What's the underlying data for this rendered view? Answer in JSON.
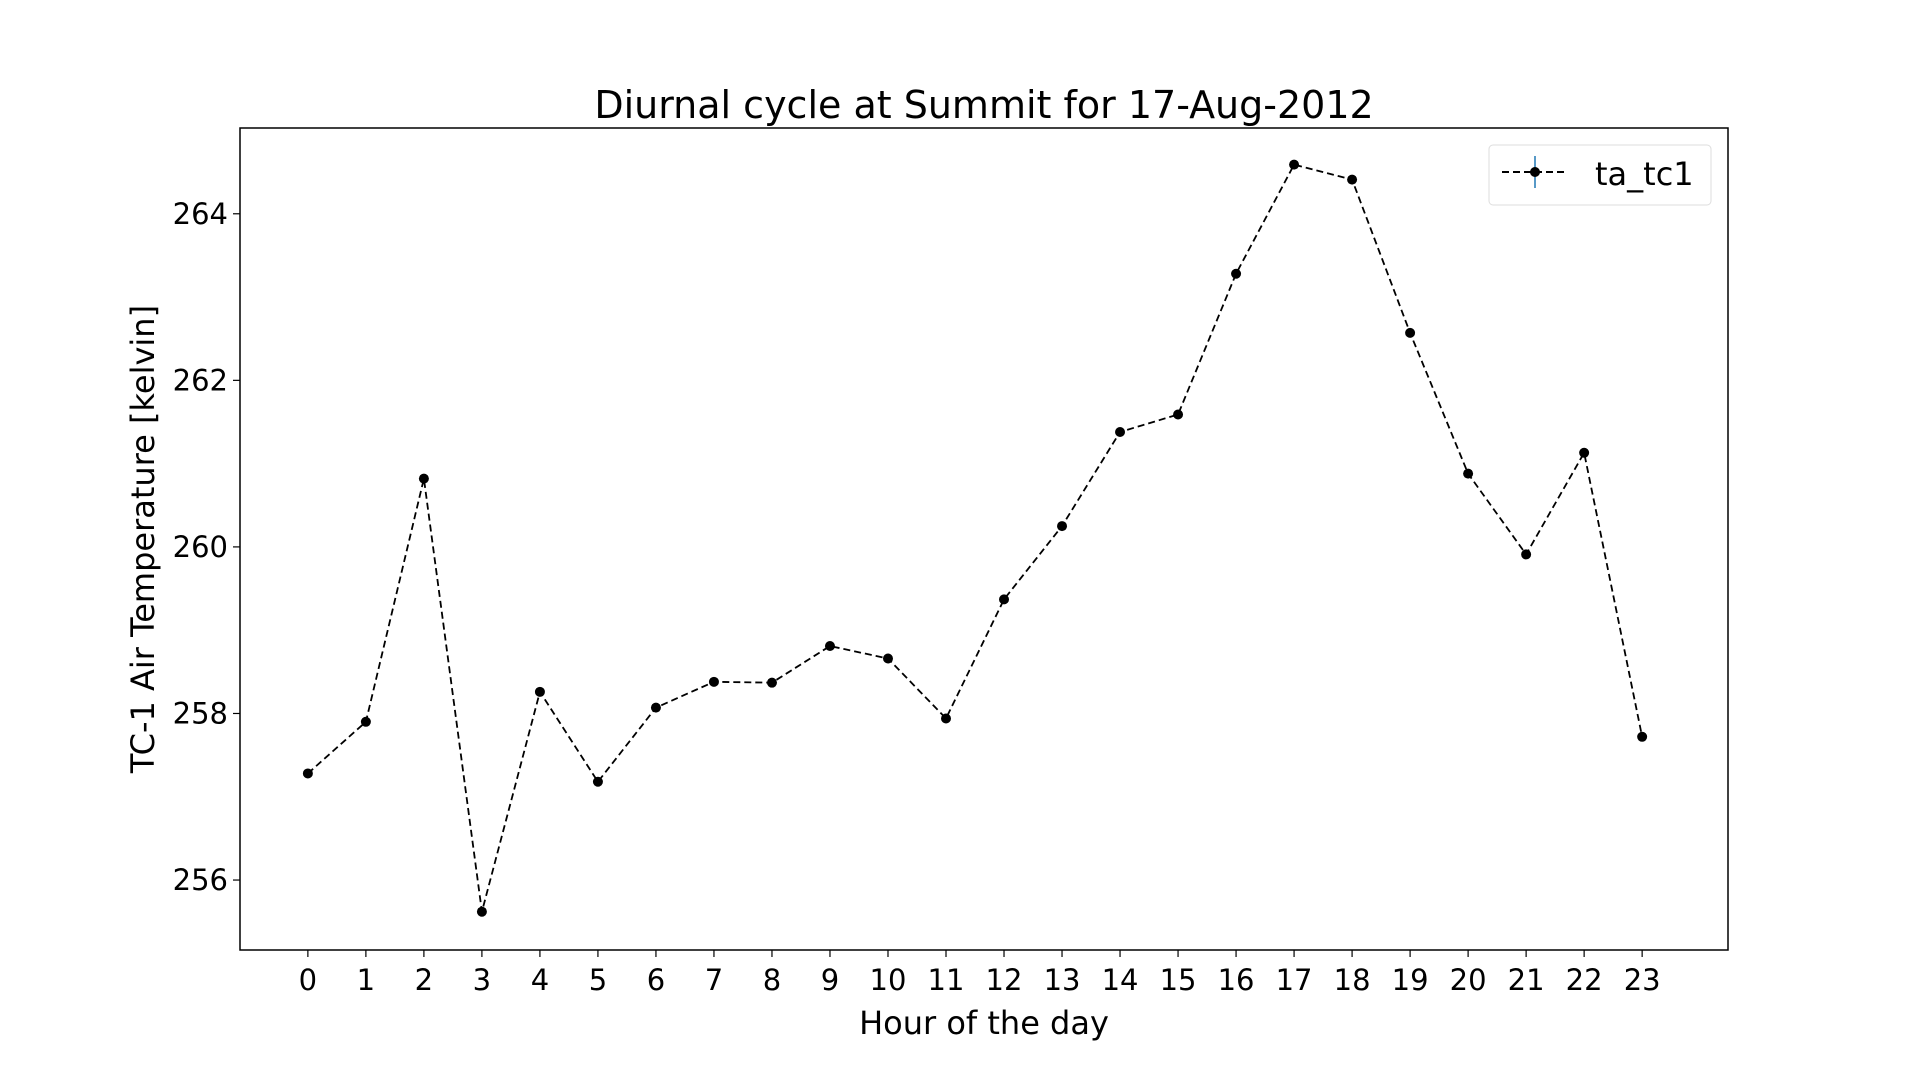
{
  "chart_data": {
    "type": "line",
    "title": "Diurnal cycle at Summit for 17-Aug-2012",
    "xlabel": "Hour of the day",
    "ylabel": "TC-1 Air Temperature [kelvin]",
    "x": [
      0,
      1,
      2,
      3,
      4,
      5,
      6,
      7,
      8,
      9,
      10,
      11,
      12,
      13,
      14,
      15,
      16,
      17,
      18,
      19,
      20,
      21,
      22,
      23
    ],
    "xticks": [
      "0",
      "1",
      "2",
      "3",
      "4",
      "5",
      "6",
      "7",
      "8",
      "9",
      "10",
      "11",
      "12",
      "13",
      "14",
      "15",
      "16",
      "17",
      "18",
      "19",
      "20",
      "21",
      "22",
      "23"
    ],
    "yticks": [
      256,
      258,
      260,
      262,
      264
    ],
    "xlim": [
      -1.17,
      24.48
    ],
    "ylim": [
      255.16,
      265.03
    ],
    "grid": false,
    "legend_position": "top-right",
    "series": [
      {
        "name": "ta_tc1",
        "color": "#000000",
        "errorbar_color": "#1f77b4",
        "linestyle": "dashed",
        "marker": "circle",
        "values": [
          257.28,
          257.9,
          260.82,
          255.62,
          258.26,
          257.18,
          258.07,
          258.38,
          258.37,
          258.81,
          258.66,
          257.94,
          259.37,
          260.25,
          261.38,
          261.59,
          263.28,
          264.59,
          264.41,
          262.57,
          260.88,
          259.91,
          261.13,
          257.72
        ]
      }
    ]
  }
}
